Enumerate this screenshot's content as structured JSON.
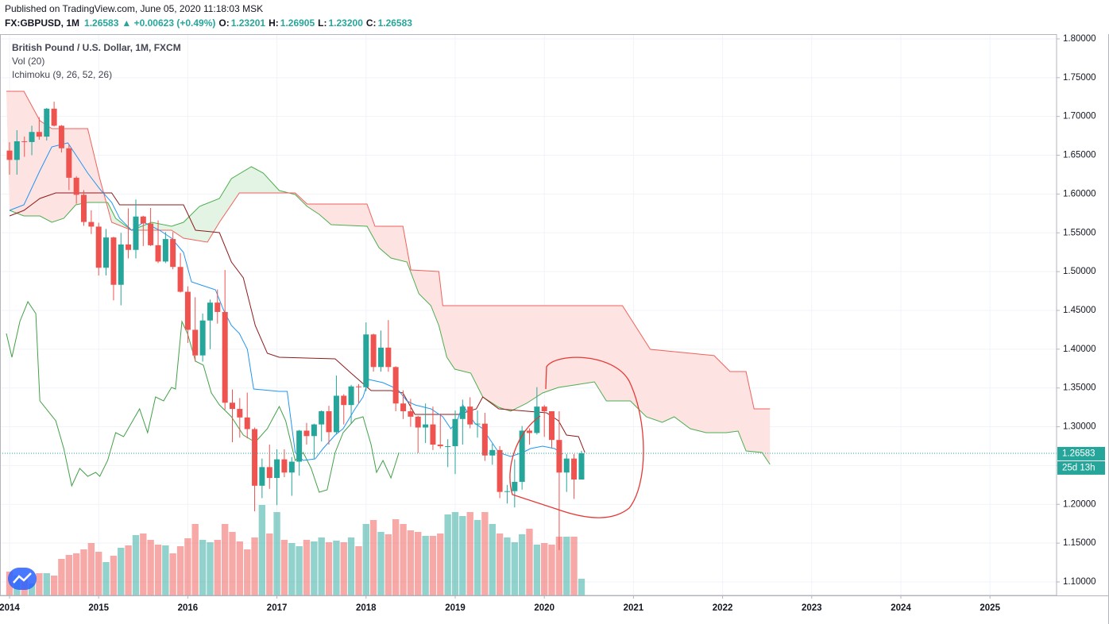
{
  "chart_data": {
    "type": "candlestick",
    "header": {
      "source": "Published on TradingView.com, June 05, 2020 11:18:03 MSK",
      "symbol": "FX:GBPUSD, 1M",
      "price": "1.26583",
      "change": "▲ +0.00623 (+0.49%)",
      "o_label": "O:",
      "o": "1.23201",
      "h_label": "H:",
      "h": "1.26905",
      "l_label": "L:",
      "l": "1.23200",
      "c_label": "C:",
      "c": "1.26583"
    },
    "legend": [
      "British Pound / U.S. Dollar, 1M, FXCM",
      "Vol (20)",
      "Ichimoku (9, 26, 52, 26)"
    ],
    "up_color": "#26a69a",
    "down_color": "#ef5350",
    "x": [
      2014,
      2014.083,
      2014.167,
      2014.25,
      2014.333,
      2014.417,
      2014.5,
      2014.583,
      2014.667,
      2014.75,
      2014.833,
      2014.917,
      2015,
      2015.083,
      2015.167,
      2015.25,
      2015.333,
      2015.417,
      2015.5,
      2015.583,
      2015.667,
      2015.75,
      2015.833,
      2015.917,
      2016,
      2016.083,
      2016.167,
      2016.25,
      2016.333,
      2016.417,
      2016.5,
      2016.583,
      2016.667,
      2016.75,
      2016.833,
      2016.917,
      2017,
      2017.083,
      2017.167,
      2017.25,
      2017.333,
      2017.417,
      2017.5,
      2017.583,
      2017.667,
      2017.75,
      2017.833,
      2017.917,
      2018,
      2018.083,
      2018.167,
      2018.25,
      2018.333,
      2018.417,
      2018.5,
      2018.583,
      2018.667,
      2018.75,
      2018.833,
      2018.917,
      2019,
      2019.083,
      2019.167,
      2019.25,
      2019.333,
      2019.417,
      2019.5,
      2019.583,
      2019.667,
      2019.75,
      2019.833,
      2019.917,
      2020,
      2020.083,
      2020.167,
      2020.25,
      2020.333,
      2020.417
    ],
    "open": [
      1.656,
      1.644,
      1.668,
      1.667,
      1.68,
      1.674,
      1.71,
      1.688,
      1.659,
      1.621,
      1.599,
      1.564,
      1.558,
      1.505,
      1.544,
      1.483,
      1.535,
      1.528,
      1.571,
      1.562,
      1.534,
      1.513,
      1.542,
      1.506,
      1.474,
      1.425,
      1.392,
      1.437,
      1.46,
      1.448,
      1.331,
      1.323,
      1.312,
      1.297,
      1.224,
      1.248,
      1.234,
      1.258,
      1.241,
      1.255,
      1.295,
      1.288,
      1.303,
      1.32,
      1.293,
      1.34,
      1.328,
      1.352,
      1.351,
      1.419,
      1.377,
      1.402,
      1.377,
      1.33,
      1.32,
      1.313,
      1.299,
      1.303,
      1.277,
      1.275,
      1.275,
      1.31,
      1.326,
      1.303,
      1.304,
      1.263,
      1.27,
      1.216,
      1.217,
      1.229,
      1.295,
      1.292,
      1.326,
      1.32,
      1.283,
      1.241,
      1.259,
      1.23201
    ],
    "high": [
      1.6668,
      1.6823,
      1.674,
      1.688,
      1.699,
      1.711,
      1.719,
      1.689,
      1.664,
      1.623,
      1.605,
      1.579,
      1.563,
      1.555,
      1.545,
      1.55,
      1.5815,
      1.593,
      1.572,
      1.582,
      1.566,
      1.551,
      1.551,
      1.524,
      1.481,
      1.467,
      1.446,
      1.464,
      1.477,
      1.502,
      1.348,
      1.337,
      1.344,
      1.299,
      1.259,
      1.277,
      1.271,
      1.271,
      1.261,
      1.296,
      1.305,
      1.304,
      1.321,
      1.327,
      1.366,
      1.342,
      1.354,
      1.355,
      1.4345,
      1.42,
      1.424,
      1.4375,
      1.378,
      1.347,
      1.336,
      1.314,
      1.33,
      1.326,
      1.317,
      1.284,
      1.321,
      1.335,
      1.338,
      1.321,
      1.318,
      1.278,
      1.275,
      1.225,
      1.258,
      1.301,
      1.298,
      1.351,
      1.328,
      1.32,
      1.32,
      1.265,
      1.265,
      1.26905
    ],
    "low": [
      1.625,
      1.625,
      1.648,
      1.65,
      1.67,
      1.669,
      1.687,
      1.6535,
      1.605,
      1.5875,
      1.559,
      1.5485,
      1.495,
      1.495,
      1.463,
      1.4565,
      1.517,
      1.517,
      1.533,
      1.533,
      1.511,
      1.511,
      1.503,
      1.473,
      1.408,
      1.384,
      1.384,
      1.4,
      1.433,
      1.322,
      1.28,
      1.286,
      1.285,
      1.191,
      1.208,
      1.22,
      1.199,
      1.235,
      1.211,
      1.237,
      1.277,
      1.259,
      1.281,
      1.277,
      1.29,
      1.303,
      1.304,
      1.33,
      1.346,
      1.371,
      1.371,
      1.371,
      1.32,
      1.31,
      1.3,
      1.266,
      1.279,
      1.27,
      1.272,
      1.248,
      1.239,
      1.277,
      1.298,
      1.286,
      1.256,
      1.251,
      1.208,
      1.201,
      1.196,
      1.219,
      1.277,
      1.29,
      1.287,
      1.273,
      1.141,
      1.216,
      1.207,
      1.232
    ],
    "close": [
      1.644,
      1.668,
      1.667,
      1.68,
      1.674,
      1.71,
      1.688,
      1.659,
      1.621,
      1.599,
      1.564,
      1.558,
      1.505,
      1.544,
      1.483,
      1.535,
      1.528,
      1.571,
      1.562,
      1.534,
      1.513,
      1.542,
      1.506,
      1.474,
      1.425,
      1.392,
      1.437,
      1.46,
      1.448,
      1.331,
      1.323,
      1.312,
      1.297,
      1.224,
      1.248,
      1.234,
      1.258,
      1.241,
      1.255,
      1.295,
      1.288,
      1.303,
      1.32,
      1.293,
      1.34,
      1.328,
      1.352,
      1.351,
      1.419,
      1.377,
      1.402,
      1.377,
      1.33,
      1.32,
      1.313,
      1.299,
      1.303,
      1.277,
      1.275,
      1.275,
      1.31,
      1.326,
      1.303,
      1.304,
      1.263,
      1.27,
      1.216,
      1.217,
      1.229,
      1.295,
      1.292,
      1.326,
      1.32,
      1.283,
      1.241,
      1.259,
      1.23201,
      1.26583
    ],
    "volume": [
      30,
      25,
      20,
      15,
      28,
      28,
      25,
      46,
      51,
      53,
      58,
      66,
      55,
      42,
      50,
      60,
      63,
      76,
      78,
      70,
      64,
      63,
      53,
      62,
      72,
      90,
      70,
      67,
      70,
      90,
      80,
      68,
      58,
      73,
      114,
      78,
      105,
      70,
      66,
      62,
      70,
      68,
      73,
      67,
      69,
      67,
      73,
      62,
      90,
      95,
      80,
      77,
      96,
      90,
      82,
      80,
      75,
      75,
      78,
      102,
      105,
      100,
      105,
      95,
      105,
      90,
      78,
      73,
      67,
      77,
      84,
      64,
      66,
      64,
      74,
      74,
      74,
      21
    ],
    "tenkan": {
      "color": "#2196f3",
      "x": [
        2014,
        2014.161,
        2014.34,
        2014.474,
        2014.654,
        2014.743,
        2014.877,
        2015.012,
        2015.146,
        2015.235,
        2015.37,
        2015.504,
        2015.683,
        2015.817,
        2015.952,
        2016.041,
        2016.175,
        2016.31,
        2016.399,
        2016.489,
        2016.578,
        2016.668,
        2016.739,
        2017.026,
        2017.115,
        2017.205,
        2017.295,
        2017.429,
        2017.518,
        2017.653,
        2017.742,
        2017.876,
        2017.966,
        2018.029,
        2018.19,
        2018.351,
        2018.458,
        2018.548,
        2018.727,
        2018.861,
        2018.951,
        2019.022,
        2019.085,
        2019.219,
        2019.309,
        2019.398,
        2019.488,
        2019.622,
        2019.757,
        2019.846,
        2019.98,
        2020.115,
        2020.204
      ],
      "values": [
        1.5789,
        1.5861,
        1.6301,
        1.6608,
        1.6659,
        1.6506,
        1.627,
        1.6066,
        1.5892,
        1.5687,
        1.5533,
        1.5636,
        1.5533,
        1.5431,
        1.5247,
        1.4868,
        1.4817,
        1.4766,
        1.451,
        1.4305,
        1.4203,
        1.3998,
        1.3487,
        1.3456,
        1.3456,
        1.2668,
        1.2566,
        1.2586,
        1.2719,
        1.2893,
        1.2975,
        1.3231,
        1.3384,
        1.3609,
        1.3569,
        1.3487,
        1.3333,
        1.3282,
        1.3231,
        1.3129,
        1.2975,
        1.3077,
        1.3282,
        1.3047,
        1.2975,
        1.2822,
        1.2668,
        1.2617,
        1.2668,
        1.2719,
        1.275,
        1.2719,
        1.2648
      ]
    },
    "kijun": {
      "color": "#8e1b1b",
      "x": [
        2014,
        2014.161,
        2014.34,
        2014.519,
        2015.146,
        2015.235,
        2015.952,
        2016.086,
        2016.355,
        2016.489,
        2016.623,
        2016.757,
        2016.892,
        2017.026,
        2017.653,
        2017.832,
        2018.056,
        2018.279,
        2018.414,
        2018.548,
        2019.04,
        2019.237,
        2019.309,
        2019.488,
        2020.025,
        2020.159,
        2020.249,
        2020.383,
        2020.455
      ],
      "values": [
        1.5718,
        1.5789,
        1.5943,
        1.6014,
        1.6014,
        1.5861,
        1.5861,
        1.5533,
        1.5503,
        1.5124,
        1.4919,
        1.4305,
        1.3947,
        1.3896,
        1.3876,
        1.3691,
        1.3466,
        1.3466,
        1.3436,
        1.3159,
        1.3159,
        1.3231,
        1.3384,
        1.3231,
        1.318,
        1.3077,
        1.2893,
        1.2873,
        1.2668
      ]
    },
    "chikou": {
      "color": "#43a047",
      "x": [
        2013.964,
        2014.027,
        2014.116,
        2014.206,
        2014.295,
        2014.34,
        2014.519,
        2014.609,
        2014.698,
        2014.788,
        2014.877,
        2014.967,
        2015.012,
        2015.101,
        2015.191,
        2015.28,
        2015.459,
        2015.549,
        2015.638,
        2015.728,
        2015.817,
        2015.862,
        2015.934,
        2015.996,
        2016.086,
        2016.175,
        2016.265,
        2016.355,
        2016.489,
        2016.623,
        2016.757,
        2016.892,
        2017.026,
        2017.098,
        2017.205,
        2017.295,
        2017.384,
        2017.474,
        2017.563,
        2017.653,
        2017.742,
        2017.876,
        2017.966,
        2018.056,
        2018.118,
        2018.19,
        2018.279,
        2018.369
      ],
      "values": [
        1.4203,
        1.3896,
        1.4357,
        1.4612,
        1.4459,
        1.3333,
        1.3077,
        1.2719,
        1.2238,
        1.2463,
        1.2361,
        1.2412,
        1.2361,
        1.2566,
        1.2924,
        1.2873,
        1.3231,
        1.2924,
        1.3384,
        1.3333,
        1.3507,
        1.3487,
        1.4357,
        1.4203,
        1.3845,
        1.3794,
        1.3436,
        1.3282,
        1.3129,
        1.2893,
        1.2801,
        1.2975,
        1.3262,
        1.3077,
        1.2566,
        1.2668,
        1.2463,
        1.2156,
        1.2187,
        1.2668,
        1.2924,
        1.3098,
        1.3129,
        1.277,
        1.2412,
        1.2566,
        1.2341,
        1.2668
      ]
    },
    "span_a": {
      "color": "#4caf50",
      "fill": "#e3f4e4",
      "x": [
        2014,
        2014.161,
        2014.34,
        2014.474,
        2014.609,
        2014.743,
        2014.877,
        2015.101,
        2015.191,
        2015.37,
        2015.594,
        2015.817,
        2015.952,
        2016.131,
        2016.355,
        2016.489,
        2016.713,
        2016.847,
        2017.026,
        2017.205,
        2017.339,
        2017.474,
        2017.608,
        2018.011,
        2018.145,
        2018.279,
        2018.458,
        2018.593,
        2018.727,
        2018.816,
        2018.906,
        2018.996,
        2019.175,
        2019.309,
        2019.488,
        2019.622,
        2019.801,
        2019.98,
        2020.159,
        2020.338,
        2020.562,
        2020.696,
        2020.965,
        2021.144,
        2021.323,
        2021.457,
        2021.637,
        2021.816,
        2022.039,
        2022.174,
        2022.263,
        2022.442,
        2022.532
      ],
      "values": [
        1.5789,
        1.5718,
        1.5718,
        1.5636,
        1.5687,
        1.5861,
        1.5892,
        1.5892,
        1.5687,
        1.5533,
        1.5636,
        1.5585,
        1.5636,
        1.584,
        1.5943,
        1.6199,
        1.6352,
        1.627,
        1.6045,
        1.5994,
        1.584,
        1.5738,
        1.5605,
        1.5585,
        1.5308,
        1.5175,
        1.5124,
        1.4715,
        1.4561,
        1.4305,
        1.3896,
        1.3743,
        1.3691,
        1.3384,
        1.3251,
        1.32,
        1.3302,
        1.3436,
        1.3507,
        1.3538,
        1.3579,
        1.3333,
        1.3333,
        1.3129,
        1.3057,
        1.3129,
        1.2975,
        1.2924,
        1.2924,
        1.2944,
        1.2688,
        1.2668,
        1.2515
      ]
    },
    "span_b": {
      "color": "#f0625d",
      "fill": "#fde3e1",
      "x": [
        2013.964,
        2014.161,
        2014.34,
        2014.474,
        2014.877,
        2015.012,
        2015.146,
        2015.37,
        2015.817,
        2015.952,
        2016.22,
        2016.355,
        2016.578,
        2016.802,
        2017.205,
        2017.339,
        2018.011,
        2018.1,
        2018.414,
        2018.503,
        2018.816,
        2018.861,
        2020.876,
        2021.189,
        2021.905,
        2022.084,
        2022.263,
        2022.353,
        2022.532
      ],
      "values": [
        1.7324,
        1.7324,
        1.6946,
        1.6843,
        1.6843,
        1.6199,
        1.5636,
        1.5533,
        1.5533,
        1.5431,
        1.538,
        1.5636,
        1.6014,
        1.6014,
        1.6014,
        1.5871,
        1.5871,
        1.5585,
        1.5585,
        1.5022,
        1.5001,
        1.4561,
        1.4561,
        1.3998,
        1.3917,
        1.3712,
        1.3712,
        1.3231,
        1.3231
      ]
    },
    "last_price": 1.26583,
    "countdown": "25d 13h",
    "xlim": [
      2013.893,
      2025.747
    ],
    "ylim": [
      1.0826,
      1.8061
    ],
    "y2lim": [
      0,
      707
    ],
    "xticks": [
      2014,
      2015,
      2016,
      2017,
      2018,
      2019,
      2020,
      2021,
      2022,
      2023,
      2024,
      2025
    ],
    "yticks": [
      {
        "value": 1.1,
        "label": "1.10000"
      },
      {
        "value": 1.15,
        "label": "1.15000"
      },
      {
        "value": 1.2,
        "label": "1.20000"
      },
      {
        "value": 1.25,
        "label": "1.25000"
      },
      {
        "value": 1.3,
        "label": "1.30000"
      },
      {
        "value": 1.35,
        "label": "1.35000"
      },
      {
        "value": 1.4,
        "label": "1.40000"
      },
      {
        "value": 1.45,
        "label": "1.45000"
      },
      {
        "value": 1.5,
        "label": "1.50000"
      },
      {
        "value": 1.55,
        "label": "1.55000"
      },
      {
        "value": 1.6,
        "label": "1.60000"
      },
      {
        "value": 1.65,
        "label": "1.65000"
      },
      {
        "value": 1.7,
        "label": "1.70000"
      },
      {
        "value": 1.75,
        "label": "1.75000"
      },
      {
        "value": 1.8,
        "label": "1.80000"
      }
    ],
    "grid": true
  }
}
